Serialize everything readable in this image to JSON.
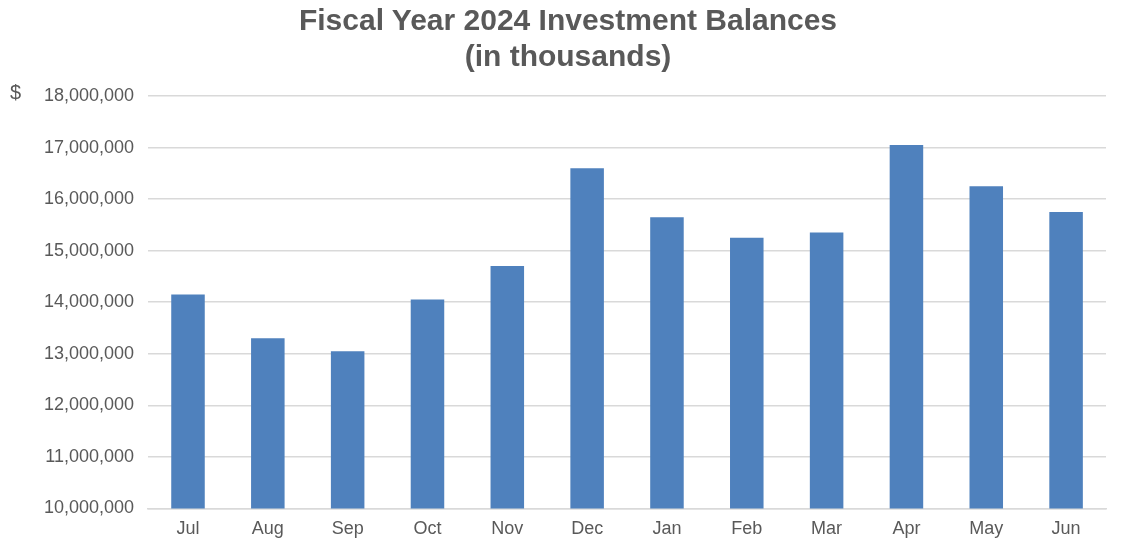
{
  "chart_data": {
    "type": "bar",
    "title": "Fiscal Year 2024 Investment Balances\n(in thousands)",
    "ylabel": "$",
    "categories": [
      "Jul",
      "Aug",
      "Sep",
      "Oct",
      "Nov",
      "Dec",
      "Jan",
      "Feb",
      "Mar",
      "Apr",
      "May",
      "Jun"
    ],
    "values": [
      14150000,
      13300000,
      13050000,
      14050000,
      14700000,
      16600000,
      15650000,
      15250000,
      15350000,
      17050000,
      16250000,
      15750000
    ],
    "color": "#4f81bd",
    "ylim": [
      10000000,
      18000000
    ],
    "yticks": [
      {
        "value": 10000000,
        "label": "10,000,000"
      },
      {
        "value": 11000000,
        "label": "11,000,000"
      },
      {
        "value": 12000000,
        "label": "12,000,000"
      },
      {
        "value": 13000000,
        "label": "13,000,000"
      },
      {
        "value": 14000000,
        "label": "14,000,000"
      },
      {
        "value": 15000000,
        "label": "15,000,000"
      },
      {
        "value": 16000000,
        "label": "16,000,000"
      },
      {
        "value": 17000000,
        "label": "17,000,000"
      },
      {
        "value": 18000000,
        "label": "18,000,000"
      }
    ],
    "grid": "y",
    "legend": false
  }
}
